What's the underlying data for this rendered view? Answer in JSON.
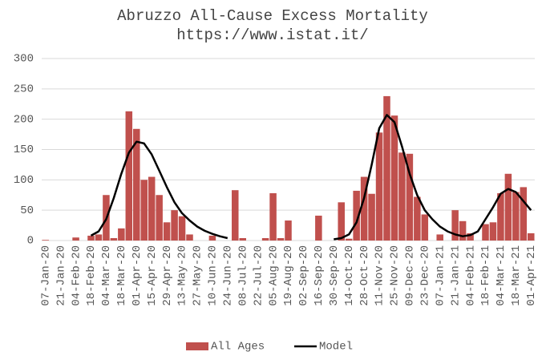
{
  "chart_data": {
    "type": "bar_line",
    "title": "Abruzzo All-Cause Excess Mortality",
    "subtitle": "https://www.istat.it/",
    "categories": [
      "07-Jan-20",
      null,
      "21-Jan-20",
      null,
      "04-Feb-20",
      null,
      "18-Feb-20",
      null,
      "04-Mar-20",
      null,
      "18-Mar-20",
      null,
      "01-Apr-20",
      null,
      "15-Apr-20",
      null,
      "29-Apr-20",
      null,
      "13-May-20",
      null,
      "27-May-20",
      null,
      "10-Jun-20",
      null,
      "24-Jun-20",
      null,
      "08-Jul-20",
      null,
      "22-Jul-20",
      null,
      "05-Aug-20",
      null,
      "19-Aug-20",
      null,
      "02-Sep-20",
      null,
      "16-Sep-20",
      null,
      "30-Sep-20",
      null,
      "14-Oct-20",
      null,
      "28-Oct-20",
      null,
      "11-Nov-20",
      null,
      "25-Nov-20",
      null,
      "09-Dec-20",
      null,
      "23-Dec-20",
      null,
      "07-Jan-21",
      null,
      "21-Jan-21",
      null,
      "04-Feb-21",
      null,
      "18-Feb-21",
      null,
      "04-Mar-21",
      null,
      "18-Mar-21",
      null,
      "01-Apr-21"
    ],
    "series": [
      {
        "name": "All Ages",
        "kind": "bar",
        "color": "#c0504d",
        "values": [
          1,
          0,
          0,
          0,
          5,
          0,
          8,
          10,
          75,
          4,
          20,
          213,
          184,
          100,
          105,
          75,
          30,
          50,
          40,
          10,
          0,
          0,
          8,
          0,
          0,
          83,
          4,
          0,
          0,
          4,
          78,
          4,
          33,
          0,
          0,
          0,
          41,
          0,
          0,
          63,
          3,
          82,
          105,
          77,
          178,
          238,
          206,
          145,
          143,
          72,
          43,
          0,
          10,
          0,
          50,
          32,
          12,
          0,
          27,
          30,
          78,
          110,
          80,
          88,
          12
        ]
      },
      {
        "name": "Model",
        "kind": "line",
        "color": "#000000",
        "values": [
          null,
          null,
          null,
          null,
          null,
          null,
          8,
          15,
          35,
          70,
          110,
          145,
          163,
          160,
          142,
          115,
          88,
          63,
          45,
          33,
          23,
          16,
          11,
          7,
          4,
          null,
          null,
          null,
          null,
          null,
          null,
          null,
          null,
          null,
          null,
          null,
          null,
          null,
          2,
          4,
          10,
          30,
          70,
          125,
          185,
          207,
          195,
          155,
          110,
          75,
          50,
          35,
          23,
          15,
          10,
          7,
          9,
          15,
          35,
          55,
          77,
          85,
          80,
          65,
          50
        ]
      }
    ],
    "ylim": [
      0,
      300
    ],
    "yticks": [
      0,
      50,
      100,
      150,
      200,
      250,
      300
    ],
    "grid": true,
    "legend": "bottom"
  }
}
